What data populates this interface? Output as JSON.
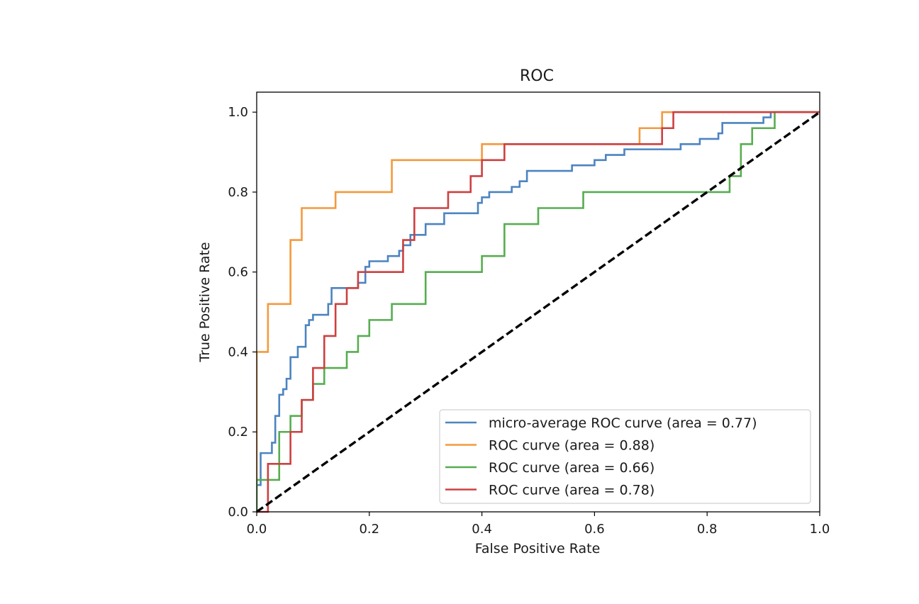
{
  "chart_data": {
    "type": "line",
    "title": "ROC",
    "xlabel": "False Positive Rate",
    "ylabel": "True Positive Rate",
    "xlim": [
      0.0,
      1.0
    ],
    "ylim": [
      0.0,
      1.05
    ],
    "xticks": [
      0.0,
      0.2,
      0.4,
      0.6,
      0.8,
      1.0
    ],
    "yticks": [
      0.0,
      0.2,
      0.4,
      0.6,
      0.8,
      1.0
    ],
    "xtick_labels": [
      "0.0",
      "0.2",
      "0.4",
      "0.6",
      "0.8",
      "1.0"
    ],
    "ytick_labels": [
      "0.0",
      "0.2",
      "0.4",
      "0.6",
      "0.8",
      "1.0"
    ],
    "grid": false,
    "legend_position": "lower-right",
    "series": [
      {
        "name": "micro-average ROC curve (area = 0.77)",
        "color": "#4c84c0",
        "points": [
          [
            0,
            0
          ],
          [
            0,
            0.067
          ],
          [
            0.007,
            0.067
          ],
          [
            0.007,
            0.147
          ],
          [
            0.027,
            0.147
          ],
          [
            0.027,
            0.173
          ],
          [
            0.033,
            0.173
          ],
          [
            0.033,
            0.24
          ],
          [
            0.04,
            0.24
          ],
          [
            0.04,
            0.293
          ],
          [
            0.047,
            0.293
          ],
          [
            0.047,
            0.307
          ],
          [
            0.053,
            0.307
          ],
          [
            0.053,
            0.333
          ],
          [
            0.06,
            0.333
          ],
          [
            0.06,
            0.387
          ],
          [
            0.073,
            0.387
          ],
          [
            0.073,
            0.413
          ],
          [
            0.087,
            0.413
          ],
          [
            0.087,
            0.467
          ],
          [
            0.093,
            0.467
          ],
          [
            0.093,
            0.48
          ],
          [
            0.1,
            0.48
          ],
          [
            0.1,
            0.493
          ],
          [
            0.127,
            0.493
          ],
          [
            0.127,
            0.52
          ],
          [
            0.133,
            0.52
          ],
          [
            0.133,
            0.56
          ],
          [
            0.18,
            0.56
          ],
          [
            0.18,
            0.573
          ],
          [
            0.193,
            0.573
          ],
          [
            0.193,
            0.613
          ],
          [
            0.2,
            0.613
          ],
          [
            0.2,
            0.627
          ],
          [
            0.233,
            0.627
          ],
          [
            0.233,
            0.64
          ],
          [
            0.253,
            0.64
          ],
          [
            0.253,
            0.653
          ],
          [
            0.26,
            0.653
          ],
          [
            0.26,
            0.667
          ],
          [
            0.273,
            0.667
          ],
          [
            0.273,
            0.693
          ],
          [
            0.3,
            0.693
          ],
          [
            0.3,
            0.72
          ],
          [
            0.333,
            0.72
          ],
          [
            0.333,
            0.747
          ],
          [
            0.393,
            0.747
          ],
          [
            0.393,
            0.773
          ],
          [
            0.4,
            0.773
          ],
          [
            0.4,
            0.787
          ],
          [
            0.413,
            0.787
          ],
          [
            0.413,
            0.8
          ],
          [
            0.453,
            0.8
          ],
          [
            0.453,
            0.813
          ],
          [
            0.467,
            0.813
          ],
          [
            0.467,
            0.827
          ],
          [
            0.48,
            0.827
          ],
          [
            0.48,
            0.853
          ],
          [
            0.56,
            0.853
          ],
          [
            0.56,
            0.867
          ],
          [
            0.6,
            0.867
          ],
          [
            0.6,
            0.88
          ],
          [
            0.62,
            0.88
          ],
          [
            0.62,
            0.893
          ],
          [
            0.653,
            0.893
          ],
          [
            0.653,
            0.907
          ],
          [
            0.753,
            0.907
          ],
          [
            0.753,
            0.92
          ],
          [
            0.787,
            0.92
          ],
          [
            0.787,
            0.933
          ],
          [
            0.82,
            0.933
          ],
          [
            0.82,
            0.947
          ],
          [
            0.827,
            0.947
          ],
          [
            0.827,
            0.973
          ],
          [
            0.9,
            0.973
          ],
          [
            0.9,
            0.987
          ],
          [
            0.913,
            0.987
          ],
          [
            0.913,
            1.0
          ],
          [
            1.0,
            1.0
          ]
        ]
      },
      {
        "name": "ROC curve (area = 0.88)",
        "color": "#f39a3d",
        "points": [
          [
            0,
            0
          ],
          [
            0,
            0.4
          ],
          [
            0.02,
            0.4
          ],
          [
            0.02,
            0.52
          ],
          [
            0.06,
            0.52
          ],
          [
            0.06,
            0.68
          ],
          [
            0.08,
            0.68
          ],
          [
            0.08,
            0.76
          ],
          [
            0.14,
            0.76
          ],
          [
            0.14,
            0.8
          ],
          [
            0.24,
            0.8
          ],
          [
            0.24,
            0.88
          ],
          [
            0.4,
            0.88
          ],
          [
            0.4,
            0.92
          ],
          [
            0.68,
            0.92
          ],
          [
            0.68,
            0.96
          ],
          [
            0.72,
            0.96
          ],
          [
            0.72,
            1.0
          ],
          [
            1.0,
            1.0
          ]
        ]
      },
      {
        "name": "ROC curve (area = 0.66)",
        "color": "#57ad50",
        "points": [
          [
            0,
            0
          ],
          [
            0,
            0.08
          ],
          [
            0.04,
            0.08
          ],
          [
            0.04,
            0.2
          ],
          [
            0.06,
            0.2
          ],
          [
            0.06,
            0.24
          ],
          [
            0.08,
            0.24
          ],
          [
            0.08,
            0.28
          ],
          [
            0.1,
            0.28
          ],
          [
            0.1,
            0.32
          ],
          [
            0.12,
            0.32
          ],
          [
            0.12,
            0.36
          ],
          [
            0.16,
            0.36
          ],
          [
            0.16,
            0.4
          ],
          [
            0.18,
            0.4
          ],
          [
            0.18,
            0.44
          ],
          [
            0.2,
            0.44
          ],
          [
            0.2,
            0.48
          ],
          [
            0.24,
            0.48
          ],
          [
            0.24,
            0.52
          ],
          [
            0.3,
            0.52
          ],
          [
            0.3,
            0.6
          ],
          [
            0.4,
            0.6
          ],
          [
            0.4,
            0.64
          ],
          [
            0.44,
            0.64
          ],
          [
            0.44,
            0.72
          ],
          [
            0.5,
            0.72
          ],
          [
            0.5,
            0.76
          ],
          [
            0.58,
            0.76
          ],
          [
            0.58,
            0.8
          ],
          [
            0.84,
            0.8
          ],
          [
            0.84,
            0.84
          ],
          [
            0.86,
            0.84
          ],
          [
            0.86,
            0.92
          ],
          [
            0.88,
            0.92
          ],
          [
            0.88,
            0.96
          ],
          [
            0.92,
            0.96
          ],
          [
            0.92,
            1.0
          ],
          [
            1.0,
            1.0
          ]
        ]
      },
      {
        "name": "ROC curve (area = 0.78)",
        "color": "#cd4040",
        "points": [
          [
            0,
            0
          ],
          [
            0.02,
            0
          ],
          [
            0.02,
            0.12
          ],
          [
            0.06,
            0.12
          ],
          [
            0.06,
            0.2
          ],
          [
            0.08,
            0.2
          ],
          [
            0.08,
            0.28
          ],
          [
            0.1,
            0.28
          ],
          [
            0.1,
            0.36
          ],
          [
            0.12,
            0.36
          ],
          [
            0.12,
            0.44
          ],
          [
            0.14,
            0.44
          ],
          [
            0.14,
            0.52
          ],
          [
            0.16,
            0.52
          ],
          [
            0.16,
            0.56
          ],
          [
            0.18,
            0.56
          ],
          [
            0.18,
            0.6
          ],
          [
            0.26,
            0.6
          ],
          [
            0.26,
            0.68
          ],
          [
            0.28,
            0.68
          ],
          [
            0.28,
            0.76
          ],
          [
            0.34,
            0.76
          ],
          [
            0.34,
            0.8
          ],
          [
            0.38,
            0.8
          ],
          [
            0.38,
            0.84
          ],
          [
            0.4,
            0.84
          ],
          [
            0.4,
            0.88
          ],
          [
            0.44,
            0.88
          ],
          [
            0.44,
            0.92
          ],
          [
            0.72,
            0.92
          ],
          [
            0.72,
            0.96
          ],
          [
            0.74,
            0.96
          ],
          [
            0.74,
            1.0
          ],
          [
            1.0,
            1.0
          ]
        ]
      }
    ],
    "diagonal": {
      "points": [
        [
          0,
          0
        ],
        [
          1,
          1
        ]
      ],
      "color": "#000000",
      "style": "dashed"
    }
  }
}
